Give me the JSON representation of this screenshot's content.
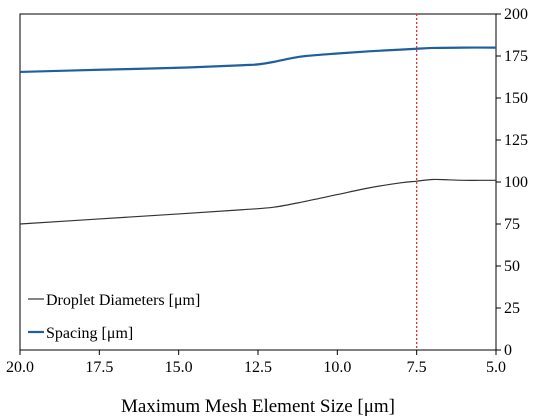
{
  "chart_data": {
    "type": "line",
    "title": "",
    "xlabel": "Maximum Mesh Element Size [μm]",
    "ylabel": "",
    "x_reversed": true,
    "xlim": [
      20.0,
      5.0
    ],
    "ylim": [
      0,
      200
    ],
    "y_axis_side": "right",
    "grid": false,
    "x_ticks": [
      "20.0",
      "17.5",
      "15.0",
      "12.5",
      "10.0",
      "7.5",
      "5.0"
    ],
    "y_ticks": [
      "0",
      "25",
      "50",
      "75",
      "100",
      "125",
      "150",
      "175",
      "200"
    ],
    "legend_position": "bottom-left",
    "reference_line": {
      "x": 7.5,
      "color": "#e03030",
      "style": "dotted"
    },
    "series": [
      {
        "name": "Droplet Diameters [μm]",
        "color": "#333333",
        "x": [
          20.0,
          17.5,
          15.0,
          13.0,
          12.0,
          11.0,
          10.0,
          9.0,
          8.0,
          7.5,
          7.0,
          6.5,
          6.0,
          5.5,
          5.0
        ],
        "y": [
          75.0,
          78.0,
          81.0,
          83.5,
          85.0,
          88.5,
          92.5,
          96.5,
          99.5,
          100.5,
          101.5,
          101.3,
          101.0,
          101.0,
          101.0
        ]
      },
      {
        "name": "Spacing [μm]",
        "color": "#1f5fa0",
        "x": [
          20.0,
          17.5,
          15.0,
          13.0,
          12.5,
          12.0,
          11.5,
          11.0,
          10.0,
          9.0,
          8.0,
          7.5,
          7.0,
          6.0,
          5.0
        ],
        "y": [
          165.5,
          166.8,
          168.0,
          169.5,
          170.0,
          171.5,
          173.5,
          175.0,
          176.5,
          177.8,
          178.8,
          179.3,
          179.8,
          180.0,
          180.0
        ]
      }
    ]
  }
}
